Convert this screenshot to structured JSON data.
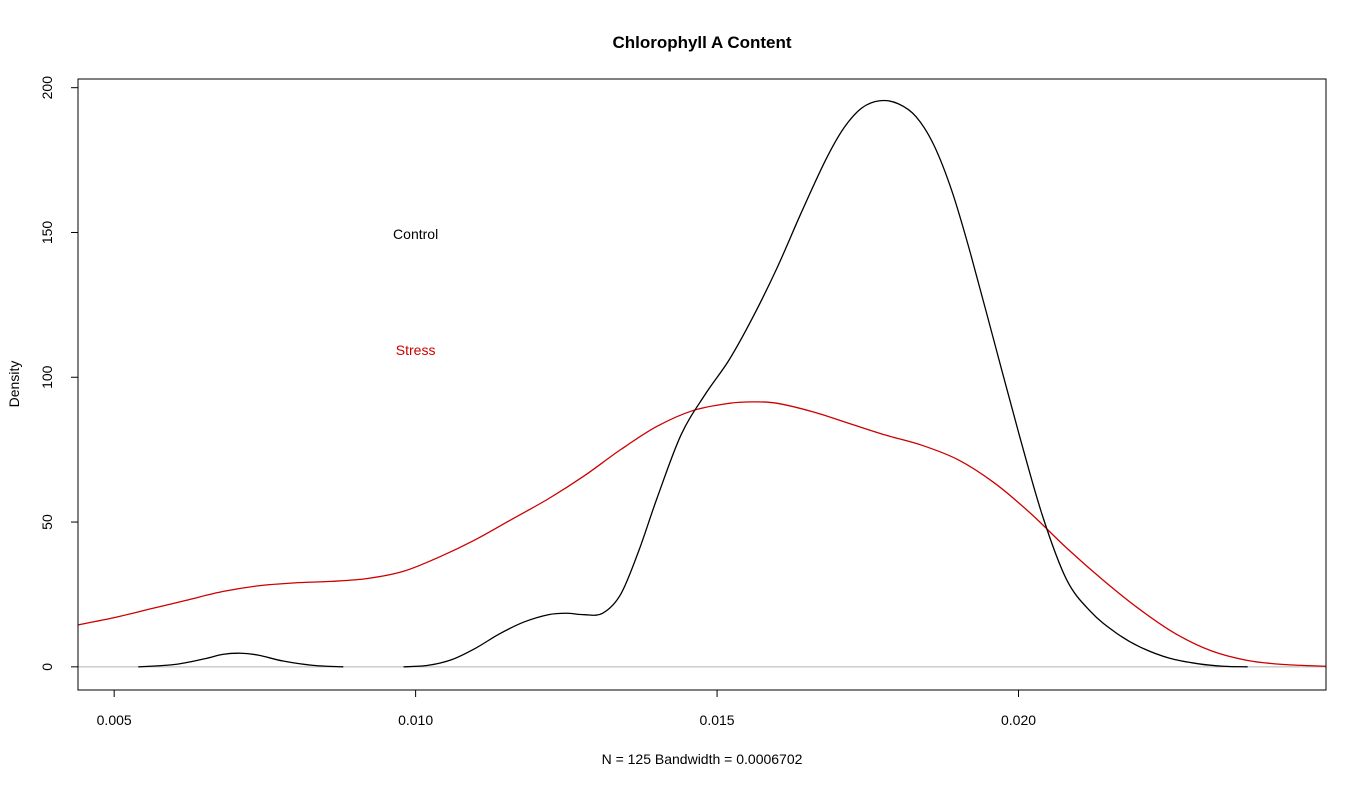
{
  "chart_data": {
    "type": "line",
    "title": "Chlorophyll A Content",
    "xlabel": "N = 125   Bandwidth = 0.0006702",
    "ylabel": "Density",
    "xlim": [
      0.0044,
      0.0251
    ],
    "ylim": [
      -8,
      203
    ],
    "x_ticks": [
      {
        "value": 0.005,
        "label": "0.005"
      },
      {
        "value": 0.01,
        "label": "0.010"
      },
      {
        "value": 0.015,
        "label": "0.015"
      },
      {
        "value": 0.02,
        "label": "0.020"
      }
    ],
    "y_ticks": [
      {
        "value": 0,
        "label": "0"
      },
      {
        "value": 50,
        "label": "50"
      },
      {
        "value": 100,
        "label": "100"
      },
      {
        "value": 150,
        "label": "150"
      },
      {
        "value": 200,
        "label": "200"
      }
    ],
    "baseline": {
      "y": 0,
      "color": "#b3b3b3"
    },
    "annotations": [
      {
        "text": "Control",
        "x": 0.01,
        "y": 149,
        "color": "#000000"
      },
      {
        "text": "Stress",
        "x": 0.01,
        "y": 109,
        "color": "#cc0000"
      }
    ],
    "series": [
      {
        "name": "Control",
        "color": "#000000",
        "segments": [
          {
            "x": [
              0.0054,
              0.006,
              0.0065,
              0.0068,
              0.0071,
              0.0074,
              0.0078,
              0.0083,
              0.0088
            ],
            "y": [
              0,
              0.8,
              2.8,
              4.3,
              4.7,
              4.0,
              2.0,
              0.5,
              0
            ]
          },
          {
            "x": [
              0.0098,
              0.0102,
              0.0106,
              0.011,
              0.0114,
              0.0118,
              0.0122,
              0.0125,
              0.0128,
              0.0131,
              0.0134,
              0.0137,
              0.014,
              0.0144,
              0.0148,
              0.0152,
              0.0156,
              0.016,
              0.0164,
              0.0168,
              0.0171,
              0.0174,
              0.0177,
              0.018,
              0.0183,
              0.0186,
              0.0189,
              0.0192,
              0.0196,
              0.02,
              0.0204,
              0.0208,
              0.0212,
              0.0216,
              0.022,
              0.0225,
              0.023,
              0.0234,
              0.0238
            ],
            "y": [
              0,
              0.5,
              2.5,
              6.5,
              11.5,
              15.5,
              18,
              18.5,
              18,
              18.5,
              25,
              40,
              58,
              80,
              94,
              106,
              121,
              138,
              157,
              175,
              186,
              193,
              195.5,
              194.5,
              190,
              180,
              164,
              143,
              112,
              81,
              52,
              30,
              19,
              12,
              7,
              3,
              1,
              0.2,
              0
            ]
          }
        ]
      },
      {
        "name": "Stress",
        "color": "#cc0000",
        "segments": [
          {
            "x": [
              0.0044,
              0.005,
              0.0056,
              0.0062,
              0.0068,
              0.0074,
              0.008,
              0.0086,
              0.0092,
              0.0098,
              0.0104,
              0.011,
              0.0116,
              0.0122,
              0.0128,
              0.0134,
              0.014,
              0.0146,
              0.0152,
              0.0156,
              0.016,
              0.0166,
              0.0172,
              0.0178,
              0.0184,
              0.019,
              0.0196,
              0.0202,
              0.0208,
              0.0214,
              0.022,
              0.0226,
              0.0232,
              0.0238,
              0.0244,
              0.0251
            ],
            "y": [
              14.5,
              17,
              20,
              23,
              26,
              28,
              29,
              29.5,
              30.5,
              33,
              38,
              44,
              51,
              58,
              66,
              75,
              83,
              88.5,
              91,
              91.5,
              91,
              88,
              84,
              80,
              76.5,
              71.5,
              63.5,
              53,
              41,
              30,
              20,
              11.5,
              5.5,
              2.2,
              0.8,
              0.2
            ]
          }
        ]
      }
    ]
  }
}
